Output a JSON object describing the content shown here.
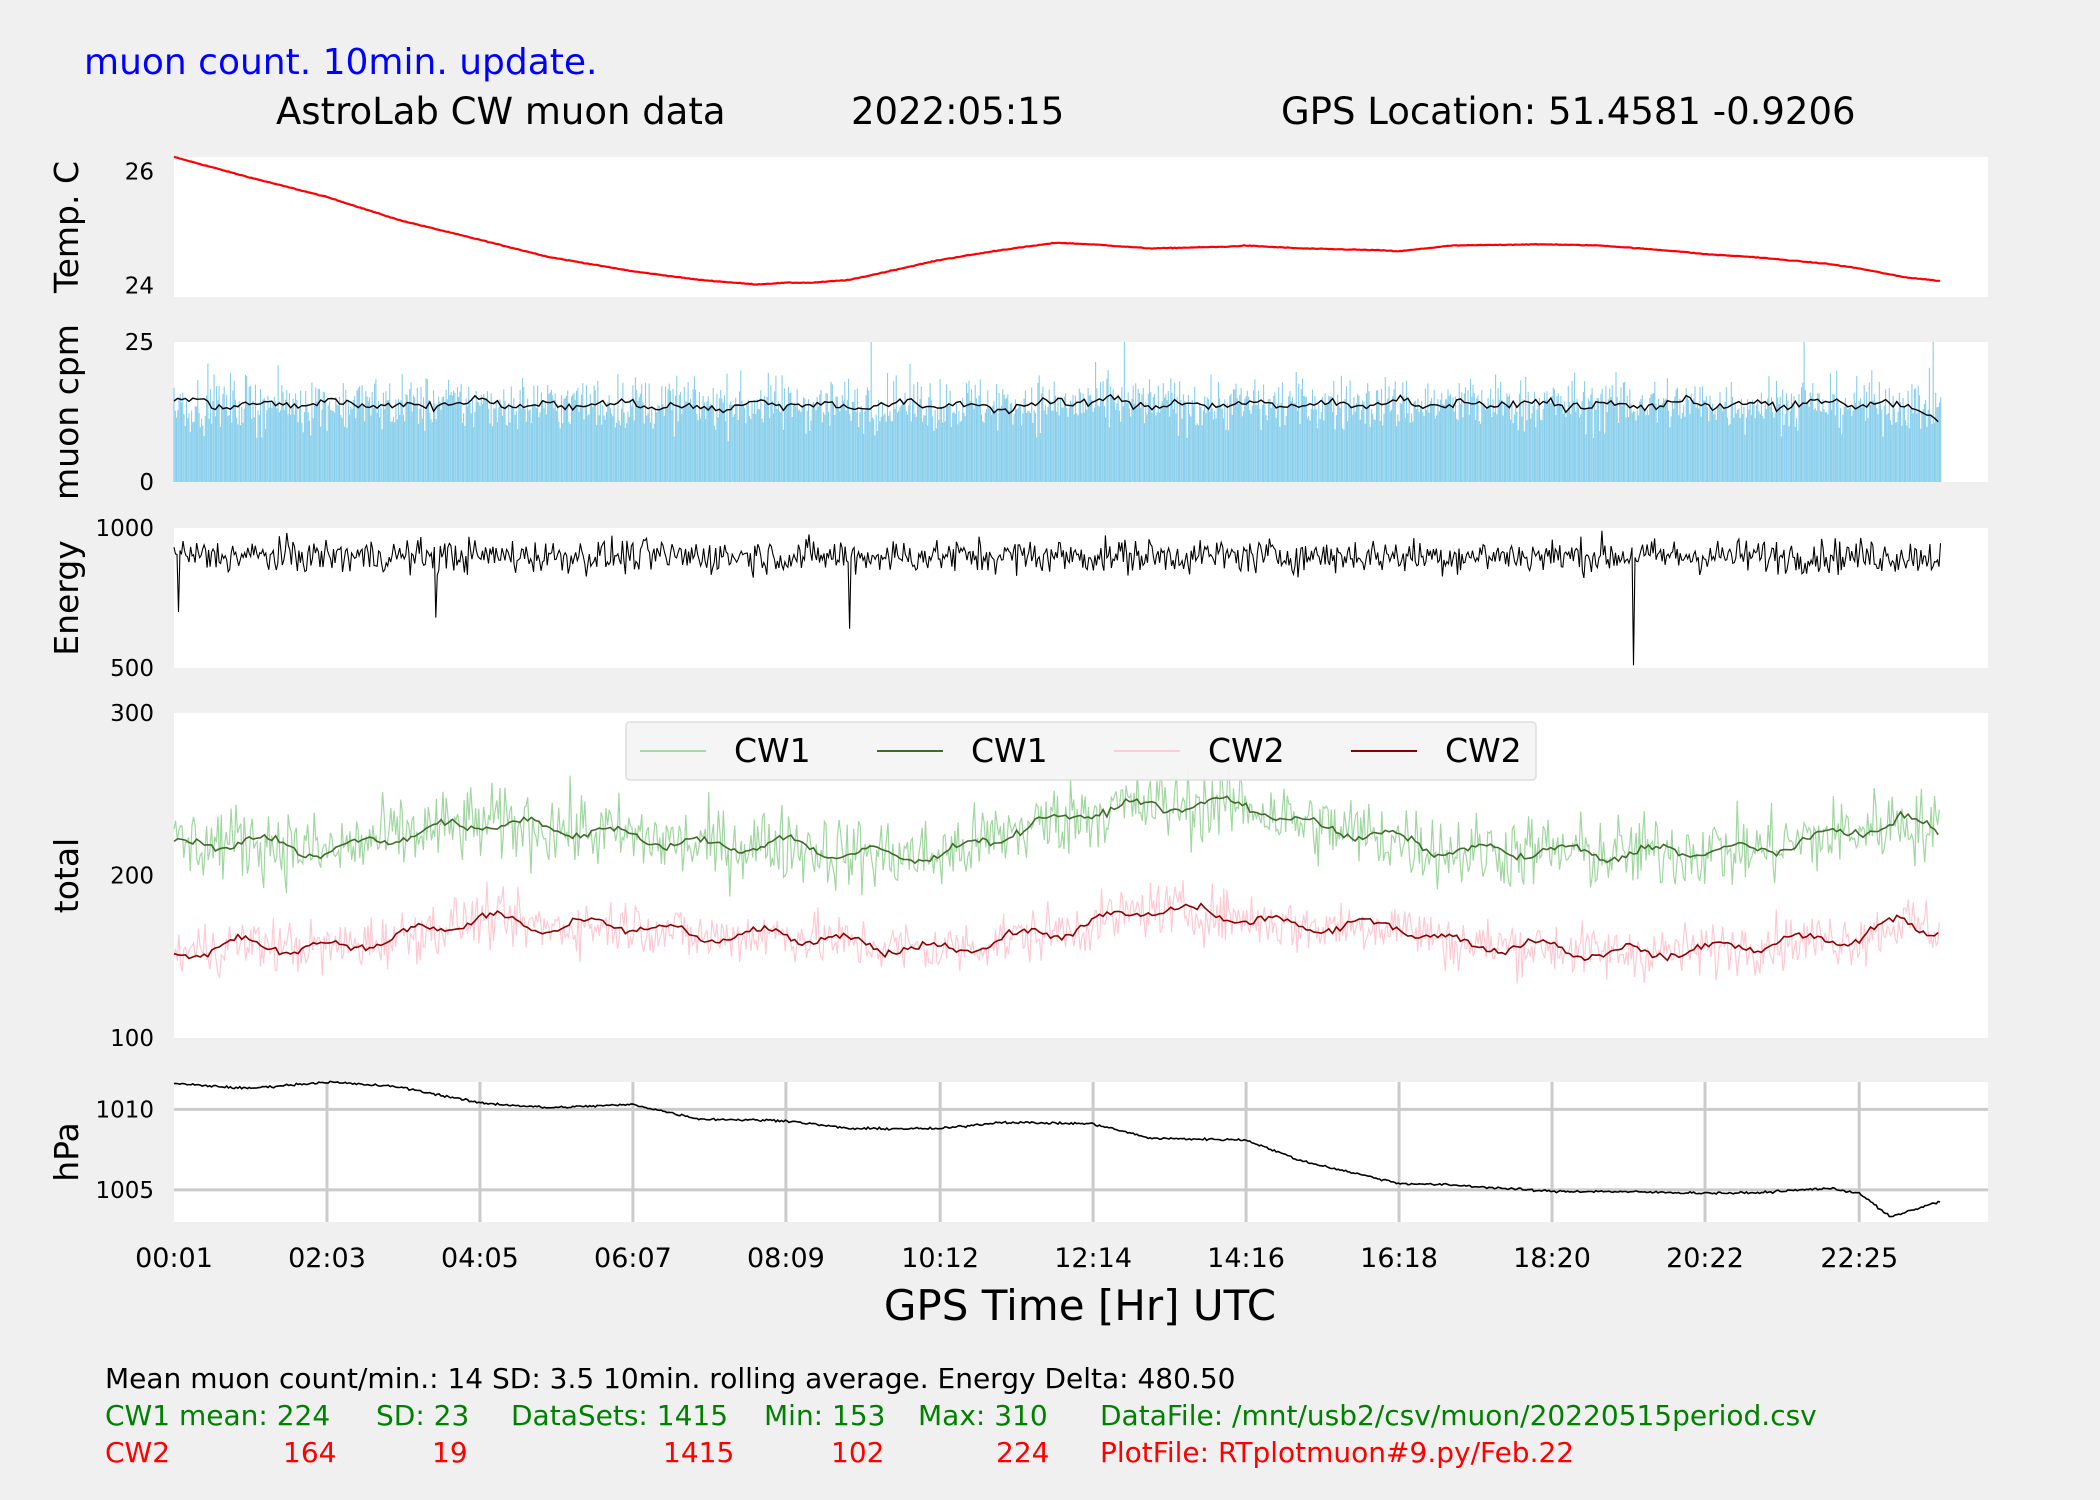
{
  "header": {
    "note": "muon count.  10min. update.",
    "title": "AstroLab CW muon data",
    "date": "2022:05:15",
    "location": "GPS Location: 51.4581   -0.9206"
  },
  "chart_data": [
    {
      "panel": "temperature",
      "type": "line",
      "ylabel": "Temp. C",
      "yticks": [
        24,
        26
      ],
      "ylim": [
        23.8,
        26.25
      ],
      "color": "#ff0000",
      "x": [
        "00:01",
        "01:00",
        "02:03",
        "03:00",
        "04:05",
        "05:00",
        "06:07",
        "07:00",
        "07:45",
        "08:09",
        "08:30",
        "09:00",
        "10:12",
        "11:00",
        "11:45",
        "12:14",
        "13:00",
        "14:00",
        "14:16",
        "15:00",
        "16:00",
        "16:18",
        "17:00",
        "18:00",
        "18:20",
        "19:00",
        "20:00",
        "20:22",
        "21:00",
        "22:00",
        "22:25",
        "23:00",
        "23:30"
      ],
      "y": [
        26.25,
        25.9,
        25.55,
        25.15,
        24.8,
        24.5,
        24.25,
        24.1,
        24.02,
        24.05,
        24.05,
        24.1,
        24.45,
        24.62,
        24.75,
        24.72,
        24.65,
        24.68,
        24.7,
        24.65,
        24.62,
        24.6,
        24.7,
        24.72,
        24.72,
        24.7,
        24.6,
        24.55,
        24.5,
        24.38,
        24.3,
        24.15,
        24.08
      ]
    },
    {
      "panel": "muon_cpm",
      "type": "bar+line",
      "ylabel": "muon cpm",
      "yticks": [
        0,
        25
      ],
      "ylim": [
        0,
        25
      ],
      "bar_color": "#87ceeb",
      "line_color": "#000000",
      "x_range": [
        "00:01",
        "23:30"
      ],
      "mean": 14,
      "sd": 3.5,
      "rolling_average_min": 10,
      "bar_max": 25,
      "rolling_x": [
        "00:01",
        "01:00",
        "02:03",
        "03:00",
        "04:05",
        "05:00",
        "06:07",
        "07:00",
        "08:09",
        "09:00",
        "10:12",
        "11:00",
        "12:14",
        "13:00",
        "14:16",
        "15:00",
        "16:18",
        "17:00",
        "18:20",
        "19:00",
        "20:22",
        "21:00",
        "22:25",
        "23:00",
        "23:30"
      ],
      "rolling_y": [
        14.5,
        13.6,
        14.2,
        13.5,
        14.4,
        13.6,
        14.0,
        13.2,
        14.1,
        13.5,
        13.9,
        13.3,
        14.6,
        13.8,
        14.0,
        13.6,
        14.3,
        13.8,
        14.0,
        13.5,
        14.2,
        13.7,
        14.1,
        13.6,
        11.6
      ]
    },
    {
      "panel": "energy",
      "type": "line",
      "ylabel": "Energy",
      "yticks": [
        500,
        1000
      ],
      "ylim": [
        500,
        1000
      ],
      "color": "#000000",
      "x_range": [
        "00:01",
        "23:30"
      ],
      "typical_range": [
        820,
        980
      ],
      "dips": [
        {
          "x": "00:05",
          "y": 700
        },
        {
          "x": "03:30",
          "y": 680
        },
        {
          "x": "09:00",
          "y": 640
        },
        {
          "x": "19:25",
          "y": 510
        }
      ],
      "peak": {
        "x": "19:00",
        "y": 990
      }
    },
    {
      "panel": "total",
      "type": "line",
      "ylabel": "total",
      "yticks": [
        100,
        200,
        300
      ],
      "ylim": [
        100,
        300
      ],
      "legend": "top-center",
      "x": [
        "00:01",
        "01:00",
        "02:03",
        "03:00",
        "04:05",
        "05:00",
        "06:07",
        "07:00",
        "08:09",
        "09:00",
        "10:12",
        "11:00",
        "12:14",
        "13:00",
        "14:16",
        "15:00",
        "16:18",
        "17:00",
        "18:20",
        "19:00",
        "20:22",
        "21:00",
        "22:25",
        "23:00",
        "23:30"
      ],
      "series": [
        {
          "name": "CW1",
          "style": "raw",
          "color": "#8fd08f",
          "amplitude": 28,
          "y": [
            218,
            222,
            214,
            225,
            232,
            230,
            224,
            218,
            220,
            213,
            212,
            225,
            240,
            243,
            244,
            232,
            222,
            215,
            215,
            213,
            216,
            215,
            228,
            234,
            226
          ]
        },
        {
          "name": "CW1",
          "style": "rolling",
          "color": "#3e6b2a",
          "y": [
            218,
            222,
            214,
            225,
            232,
            230,
            224,
            218,
            220,
            213,
            212,
            225,
            240,
            243,
            244,
            232,
            222,
            215,
            215,
            213,
            216,
            215,
            228,
            234,
            226
          ]
        },
        {
          "name": "CW2",
          "style": "raw",
          "color": "#ffc0cb",
          "amplitude": 20,
          "y": [
            152,
            158,
            155,
            162,
            174,
            168,
            170,
            162,
            164,
            158,
            154,
            160,
            170,
            180,
            174,
            168,
            170,
            158,
            156,
            152,
            154,
            158,
            162,
            172,
            166
          ]
        },
        {
          "name": "CW2",
          "style": "rolling",
          "color": "#8b0000",
          "y": [
            152,
            158,
            155,
            162,
            174,
            168,
            170,
            162,
            164,
            158,
            154,
            160,
            170,
            180,
            174,
            168,
            170,
            158,
            156,
            152,
            154,
            158,
            162,
            172,
            166
          ]
        }
      ]
    },
    {
      "panel": "pressure",
      "type": "line",
      "ylabel": "hPa",
      "yticks": [
        1005,
        1010
      ],
      "ylim": [
        1003,
        1011.7
      ],
      "grid": true,
      "color": "#000000",
      "x": [
        "00:01",
        "01:00",
        "02:03",
        "03:00",
        "04:05",
        "05:00",
        "06:07",
        "07:00",
        "08:09",
        "09:00",
        "10:12",
        "11:00",
        "12:14",
        "13:00",
        "14:16",
        "15:00",
        "16:18",
        "17:00",
        "18:20",
        "19:00",
        "20:22",
        "21:00",
        "22:00",
        "22:25",
        "22:50",
        "23:30"
      ],
      "y": [
        1011.6,
        1011.3,
        1011.7,
        1011.4,
        1010.4,
        1010.1,
        1010.3,
        1009.4,
        1009.3,
        1008.8,
        1008.8,
        1009.2,
        1009.1,
        1008.2,
        1008.1,
        1006.8,
        1005.4,
        1005.3,
        1004.9,
        1004.9,
        1004.8,
        1004.8,
        1005.1,
        1004.8,
        1003.3,
        1004.3
      ]
    }
  ],
  "xaxis": {
    "label": "GPS Time  [Hr] UTC",
    "ticks": [
      "00:01",
      "02:03",
      "04:05",
      "06:07",
      "08:09",
      "10:12",
      "12:14",
      "14:16",
      "16:18",
      "18:20",
      "20:22",
      "22:25"
    ]
  },
  "footer": {
    "summary": "Mean muon count/min.: 14  SD: 3.5   10min. rolling average.    Energy Delta:  480.50",
    "cw1_row": [
      "CW1 mean: 224",
      "SD: 23",
      "DataSets: 1415",
      "Min: 153",
      "Max: 310",
      "DataFile: /mnt/usb2/csv/muon/20220515period.csv"
    ],
    "cw2_row": [
      "CW2",
      "164",
      "19",
      "1415",
      "102",
      "224",
      "PlotFile: RTplotmuon#9.py/Feb.22"
    ]
  }
}
